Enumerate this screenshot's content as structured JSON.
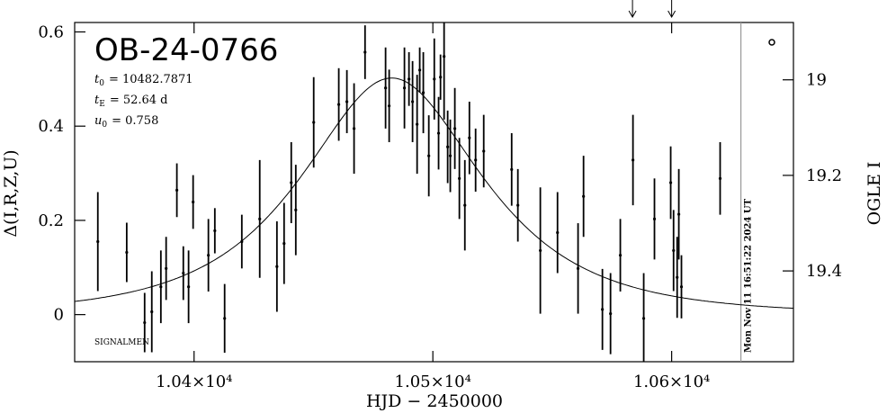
{
  "chart_data": {
    "type": "scatter",
    "title": "OB-24-0766",
    "params": [
      {
        "symbol": "t",
        "sub": "0",
        "text": "= 10482.7871",
        "value": 10482.7871
      },
      {
        "symbol": "t",
        "sub": "E",
        "text": "= 52.64 d",
        "value": 52.64
      },
      {
        "symbol": "u",
        "sub": "0",
        "text": "= 0.758",
        "value": 0.758
      }
    ],
    "credit": "SIGNALMEN",
    "xlabel": "HJD − 2450000",
    "ylabel": "Δ(I,R,Z,U)",
    "y2label": "OGLE I",
    "timestamp": "Mon Nov 11 16:51:22 2024 UT",
    "now_line": 10629,
    "arrows": [
      10583.6,
      10600
    ],
    "color": "#000000",
    "xlim": [
      10350,
      10651
    ],
    "xticks": [
      {
        "value": 10400,
        "label": "1.04×10⁴"
      },
      {
        "value": 10500,
        "label": "1.05×10⁴"
      },
      {
        "value": 10600,
        "label": "1.06×10⁴"
      }
    ],
    "ylim": [
      -0.1,
      0.62
    ],
    "yticks": [
      0,
      0.2,
      0.4,
      0.6
    ],
    "y2lim": [
      19.59,
      18.88
    ],
    "y2ticks": [
      19,
      19.2,
      19.4
    ],
    "x": [
      10359.7,
      10371.8,
      10379.3,
      10382.3,
      10386.1,
      10388.3,
      10392.8,
      10395.5,
      10397.7,
      10399.6,
      10406.0,
      10408.7,
      10412.8,
      10420.0,
      10427.5,
      10434.7,
      10437.7,
      10440.7,
      10442.6,
      10450.1,
      10460.6,
      10464.0,
      10467.0,
      10471.6,
      10480.2,
      10481.7,
      10488.1,
      10490.0,
      10491.5,
      10493.4,
      10494.5,
      10496.0,
      10498.3,
      10500.6,
      10502.4,
      10503.2,
      10504.7,
      10506.2,
      10507.3,
      10509.2,
      10511.1,
      10513.4,
      10515.3,
      10517.9,
      10521.3,
      10533.0,
      10535.6,
      10545.0,
      10552.2,
      10560.8,
      10563.1,
      10571.0,
      10574.4,
      10578.5,
      10583.8,
      10588.3,
      10592.8,
      10599.6,
      10600.8,
      10602.3,
      10603.0,
      10604.1,
      10620.3
    ],
    "values": [
      0.155,
      0.132,
      -0.017,
      0.006,
      0.059,
      0.098,
      0.264,
      0.088,
      0.059,
      0.239,
      0.126,
      0.178,
      -0.008,
      0.155,
      0.203,
      0.102,
      0.151,
      0.28,
      0.222,
      0.408,
      0.446,
      0.452,
      0.395,
      0.557,
      0.481,
      0.443,
      0.481,
      0.5,
      0.452,
      0.404,
      0.519,
      0.471,
      0.337,
      0.5,
      0.385,
      0.504,
      0.548,
      0.356,
      0.337,
      0.395,
      0.289,
      0.232,
      0.375,
      0.328,
      0.347,
      0.308,
      0.232,
      0.136,
      0.174,
      0.098,
      0.251,
      0.011,
      0.002,
      0.126,
      0.328,
      -0.008,
      0.203,
      0.28,
      0.136,
      0.079,
      0.213,
      0.059,
      0.289
    ],
    "errors": [
      0.105,
      0.063,
      0.063,
      0.086,
      0.077,
      0.067,
      0.057,
      0.057,
      0.077,
      0.057,
      0.077,
      0.048,
      0.073,
      0.057,
      0.125,
      0.096,
      0.086,
      0.086,
      0.096,
      0.096,
      0.077,
      0.067,
      0.096,
      0.057,
      0.086,
      0.077,
      0.086,
      0.057,
      0.086,
      0.105,
      0.048,
      0.086,
      0.086,
      0.086,
      0.077,
      0.048,
      0.134,
      0.077,
      0.077,
      0.086,
      0.086,
      0.096,
      0.077,
      0.067,
      0.077,
      0.077,
      0.077,
      0.134,
      0.086,
      0.096,
      0.086,
      0.086,
      0.086,
      0.077,
      0.096,
      0.096,
      0.086,
      0.077,
      0.086,
      0.086,
      0.096,
      0.067,
      0.077
    ]
  }
}
